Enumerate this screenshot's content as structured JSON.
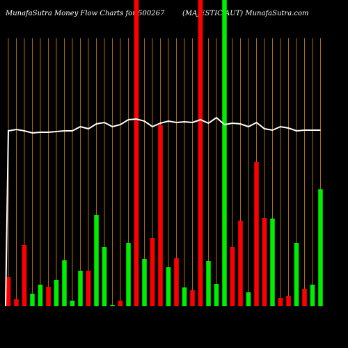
{
  "header": {
    "title": "MunafaSutra  Money Flow  Charts for 500267",
    "subtitle": "(MAJESTIC AUT) MunafaSutra.com"
  },
  "colors": {
    "background": "#000000",
    "grid": "#b36b00",
    "up": "#00ee00",
    "down": "#ff0000",
    "line": "#ffffff",
    "text": "#ffffff"
  },
  "chart_data": {
    "type": "bar",
    "title": "MunafaSutra  Money Flow  Charts for 500267",
    "grid": "vertical orange lines",
    "bars": [
      {
        "dir": "down",
        "value": 42
      },
      {
        "dir": "down",
        "value": 10
      },
      {
        "dir": "down",
        "value": 88
      },
      {
        "dir": "up",
        "value": 18
      },
      {
        "dir": "up",
        "value": 31
      },
      {
        "dir": "down",
        "value": 28
      },
      {
        "dir": "up",
        "value": 38
      },
      {
        "dir": "up",
        "value": 66
      },
      {
        "dir": "up",
        "value": 8
      },
      {
        "dir": "up",
        "value": 51
      },
      {
        "dir": "down",
        "value": 51
      },
      {
        "dir": "up",
        "value": 131
      },
      {
        "dir": "up",
        "value": 85
      },
      {
        "dir": "up",
        "value": 2
      },
      {
        "dir": "down",
        "value": 8
      },
      {
        "dir": "up",
        "value": 91
      },
      {
        "dir": "down",
        "value": 440
      },
      {
        "dir": "up",
        "value": 68
      },
      {
        "dir": "down",
        "value": 98
      },
      {
        "dir": "down",
        "value": 260
      },
      {
        "dir": "up",
        "value": 56
      },
      {
        "dir": "down",
        "value": 69
      },
      {
        "dir": "up",
        "value": 27
      },
      {
        "dir": "down",
        "value": 23
      },
      {
        "dir": "down",
        "value": 440
      },
      {
        "dir": "up",
        "value": 65
      },
      {
        "dir": "up",
        "value": 32
      },
      {
        "dir": "up",
        "value": 440
      },
      {
        "dir": "down",
        "value": 85
      },
      {
        "dir": "down",
        "value": 123
      },
      {
        "dir": "up",
        "value": 20
      },
      {
        "dir": "down",
        "value": 207
      },
      {
        "dir": "down",
        "value": 127
      },
      {
        "dir": "up",
        "value": 126
      },
      {
        "dir": "down",
        "value": 12
      },
      {
        "dir": "down",
        "value": 15
      },
      {
        "dir": "up",
        "value": 91
      },
      {
        "dir": "down",
        "value": 25
      },
      {
        "dir": "up",
        "value": 31
      },
      {
        "dir": "up",
        "value": 168
      }
    ],
    "line": [
      0,
      252,
      254,
      252,
      249,
      250,
      250,
      251,
      252,
      252,
      258,
      255,
      262,
      264,
      258,
      261,
      268,
      269,
      266,
      258,
      263,
      266,
      264,
      265,
      264,
      268,
      263,
      271,
      261,
      263,
      262,
      258,
      264,
      255,
      253,
      258,
      256,
      252,
      253,
      253,
      253
    ]
  }
}
